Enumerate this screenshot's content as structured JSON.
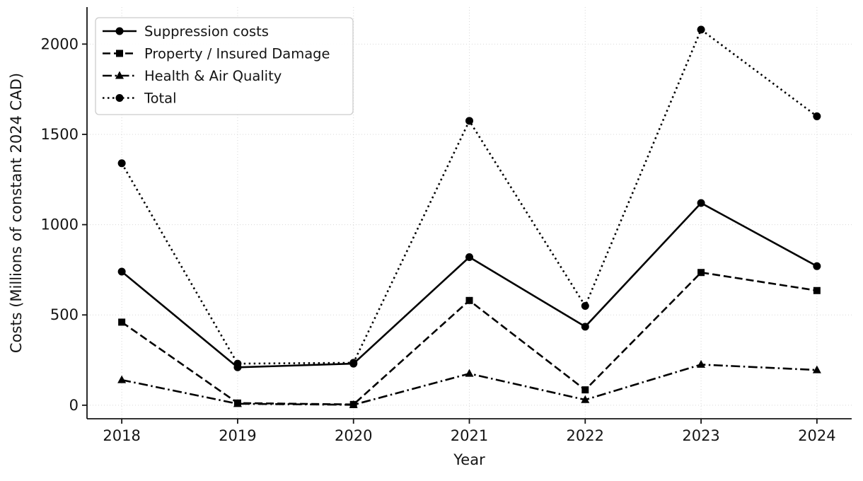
{
  "chart_data": {
    "type": "line",
    "title": "",
    "xlabel": "Year",
    "ylabel": "Costs (Millions of constant 2024 CAD)",
    "x": [
      "2018",
      "2019",
      "2020",
      "2021",
      "2022",
      "2023",
      "2024"
    ],
    "series": [
      {
        "name": "Suppression costs",
        "linestyle": "solid",
        "marker": "circle",
        "color": "#000000",
        "values": [
          740,
          210,
          230,
          820,
          435,
          1120,
          770
        ]
      },
      {
        "name": "Property / Insured Damage",
        "linestyle": "dashed",
        "marker": "square",
        "color": "#000000",
        "values": [
          460,
          12,
          4,
          580,
          85,
          735,
          635
        ]
      },
      {
        "name": "Health & Air Quality",
        "linestyle": "dashdot",
        "marker": "triangle",
        "color": "#000000",
        "values": [
          140,
          8,
          2,
          175,
          30,
          225,
          195
        ]
      },
      {
        "name": "Total",
        "linestyle": "dotted",
        "marker": "circle",
        "color": "#000000",
        "values": [
          1340,
          230,
          235,
          1575,
          550,
          2080,
          1600
        ]
      }
    ],
    "yticks": [
      0,
      500,
      1000,
      1500,
      2000
    ],
    "ylim": [
      -75,
      2205
    ],
    "grid": true,
    "legend_position": "upper left",
    "background_color": "#ffffff",
    "grid_color": "#d7d7d7",
    "axis_color": "#141414"
  }
}
